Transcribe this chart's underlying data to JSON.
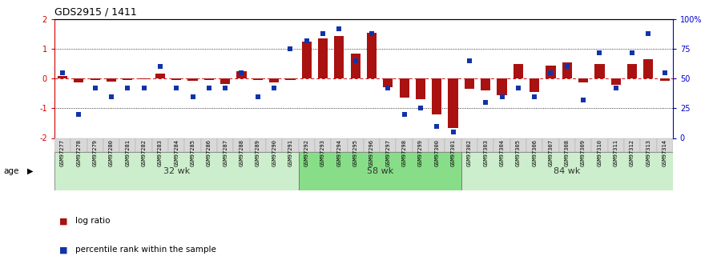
{
  "title": "GDS2915 / 1411",
  "samples": [
    "GSM97277",
    "GSM97278",
    "GSM97279",
    "GSM97280",
    "GSM97281",
    "GSM97282",
    "GSM97283",
    "GSM97284",
    "GSM97285",
    "GSM97286",
    "GSM97287",
    "GSM97288",
    "GSM97289",
    "GSM97290",
    "GSM97291",
    "GSM97292",
    "GSM97293",
    "GSM97294",
    "GSM97295",
    "GSM97296",
    "GSM97297",
    "GSM97298",
    "GSM97299",
    "GSM97300",
    "GSM97301",
    "GSM97302",
    "GSM97303",
    "GSM97304",
    "GSM97305",
    "GSM97306",
    "GSM97307",
    "GSM97308",
    "GSM97309",
    "GSM97310",
    "GSM97311",
    "GSM97312",
    "GSM97313",
    "GSM97314"
  ],
  "log_ratio": [
    0.08,
    -0.12,
    -0.05,
    -0.1,
    -0.05,
    -0.03,
    0.18,
    -0.05,
    -0.08,
    -0.05,
    -0.18,
    0.25,
    -0.05,
    -0.12,
    -0.05,
    1.25,
    1.35,
    1.45,
    0.85,
    1.55,
    -0.3,
    -0.65,
    -0.7,
    -1.2,
    -1.65,
    -0.35,
    -0.4,
    -0.55,
    0.5,
    -0.45,
    0.45,
    0.55,
    -0.12,
    0.5,
    -0.2,
    0.5,
    0.65,
    -0.08
  ],
  "percentile_raw": [
    0.55,
    0.2,
    0.42,
    0.35,
    0.42,
    0.42,
    0.6,
    0.42,
    0.35,
    0.42,
    0.42,
    0.55,
    0.35,
    0.42,
    0.75,
    0.82,
    0.88,
    0.92,
    0.65,
    0.88,
    0.42,
    0.2,
    0.25,
    0.1,
    0.05,
    0.65,
    0.3,
    0.35,
    0.42,
    0.35,
    0.55,
    0.6,
    0.32,
    0.72,
    0.42,
    0.72,
    0.88,
    0.55
  ],
  "groups": [
    {
      "label": "32 wk",
      "start": 0,
      "end": 15
    },
    {
      "label": "58 wk",
      "start": 15,
      "end": 25
    },
    {
      "label": "84 wk",
      "start": 25,
      "end": 38
    }
  ],
  "group_colors": [
    "#cceecc",
    "#88dd88",
    "#cceecc"
  ],
  "bar_color": "#aa1111",
  "dot_color": "#1133aa",
  "ylim": [
    -2,
    2
  ],
  "yticks_left": [
    -2,
    -1,
    0,
    1,
    2
  ],
  "yticks_left_labels": [
    "-2",
    "-1",
    "0",
    "1",
    "2"
  ],
  "yticks_right": [
    -2,
    -1,
    0,
    1,
    2
  ],
  "yticks_right_labels": [
    "0",
    "25",
    "50",
    "75",
    "100%"
  ],
  "legend_log_ratio": "log ratio",
  "legend_percentile": "percentile rank within the sample"
}
